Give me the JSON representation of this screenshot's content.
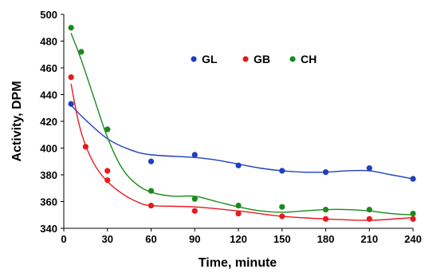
{
  "chart_data": {
    "type": "scatter",
    "title": "",
    "xlabel": "Time, minute",
    "ylabel": "Activity, DPM",
    "xlim": [
      0,
      240
    ],
    "ylim": [
      340,
      500
    ],
    "xticks": [
      0,
      30,
      60,
      90,
      120,
      150,
      180,
      210,
      240
    ],
    "yticks": [
      340,
      360,
      380,
      400,
      420,
      440,
      460,
      480,
      500
    ],
    "grid": false,
    "legend_position": "top-center",
    "series": [
      {
        "name": "GL",
        "color": "#1f3fbf",
        "points": [
          [
            5,
            433
          ],
          [
            30,
            414
          ],
          [
            60,
            390
          ],
          [
            90,
            395
          ],
          [
            120,
            387
          ],
          [
            150,
            383
          ],
          [
            180,
            382
          ],
          [
            210,
            385
          ],
          [
            240,
            377
          ]
        ],
        "curve": [
          [
            5,
            432
          ],
          [
            15,
            421
          ],
          [
            30,
            407
          ],
          [
            45,
            399
          ],
          [
            60,
            395
          ],
          [
            90,
            393
          ],
          [
            105,
            391
          ],
          [
            120,
            388
          ],
          [
            135,
            385
          ],
          [
            150,
            383
          ],
          [
            165,
            382
          ],
          [
            180,
            382
          ],
          [
            195,
            383
          ],
          [
            210,
            383
          ],
          [
            225,
            380
          ],
          [
            240,
            377
          ]
        ]
      },
      {
        "name": "GB",
        "color": "#e8191e",
        "points": [
          [
            5,
            453
          ],
          [
            15,
            401
          ],
          [
            30,
            383
          ],
          [
            30,
            376
          ],
          [
            60,
            357
          ],
          [
            90,
            353
          ],
          [
            120,
            351
          ],
          [
            150,
            349
          ],
          [
            180,
            347
          ],
          [
            210,
            347
          ],
          [
            240,
            347
          ]
        ],
        "curve": [
          [
            5,
            448
          ],
          [
            10,
            420
          ],
          [
            15,
            402
          ],
          [
            22,
            386
          ],
          [
            30,
            375
          ],
          [
            40,
            366
          ],
          [
            50,
            360
          ],
          [
            60,
            357
          ],
          [
            90,
            356
          ],
          [
            120,
            353
          ],
          [
            150,
            349
          ],
          [
            180,
            347
          ],
          [
            210,
            346
          ],
          [
            240,
            348
          ]
        ]
      },
      {
        "name": "CH",
        "color": "#1a8a1a",
        "points": [
          [
            5,
            490
          ],
          [
            12,
            472
          ],
          [
            30,
            414
          ],
          [
            60,
            368
          ],
          [
            90,
            362
          ],
          [
            120,
            357
          ],
          [
            150,
            356
          ],
          [
            180,
            354
          ],
          [
            210,
            354
          ],
          [
            240,
            351
          ]
        ],
        "curve": [
          [
            5,
            486
          ],
          [
            12,
            466
          ],
          [
            20,
            440
          ],
          [
            30,
            408
          ],
          [
            40,
            385
          ],
          [
            50,
            373
          ],
          [
            60,
            367
          ],
          [
            75,
            364
          ],
          [
            90,
            364
          ],
          [
            105,
            360
          ],
          [
            120,
            356
          ],
          [
            135,
            353
          ],
          [
            150,
            352
          ],
          [
            165,
            353
          ],
          [
            180,
            354
          ],
          [
            195,
            354
          ],
          [
            210,
            353
          ],
          [
            225,
            351
          ],
          [
            240,
            350
          ]
        ]
      }
    ]
  }
}
